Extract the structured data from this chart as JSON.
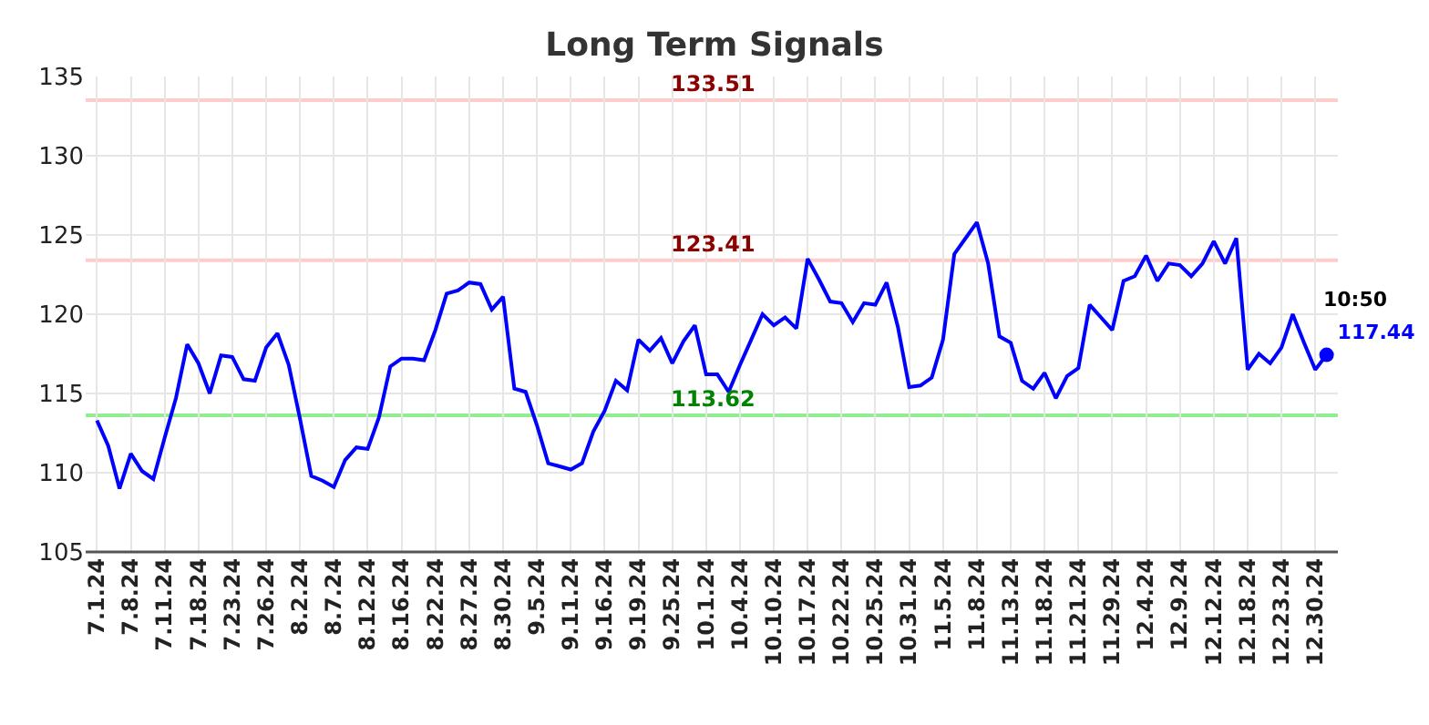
{
  "chart_data": {
    "type": "line",
    "title": "Long Term Signals",
    "categories": [
      "7.1.24",
      null,
      null,
      "7.8.24",
      null,
      null,
      "7.11.24",
      null,
      null,
      "7.18.24",
      null,
      null,
      "7.23.24",
      null,
      null,
      "7.26.24",
      null,
      null,
      "8.2.24",
      null,
      null,
      "8.7.24",
      null,
      null,
      "8.12.24",
      null,
      null,
      "8.16.24",
      null,
      null,
      "8.22.24",
      null,
      null,
      "8.27.24",
      null,
      null,
      "8.30.24",
      null,
      null,
      "9.5.24",
      null,
      null,
      "9.11.24",
      null,
      null,
      "9.16.24",
      null,
      null,
      "9.19.24",
      null,
      null,
      "9.25.24",
      null,
      null,
      "10.1.24",
      null,
      null,
      "10.4.24",
      null,
      null,
      "10.10.24",
      null,
      null,
      "10.17.24",
      null,
      null,
      "10.22.24",
      null,
      null,
      "10.25.24",
      null,
      null,
      "10.31.24",
      null,
      null,
      "11.5.24",
      null,
      null,
      "11.8.24",
      null,
      null,
      "11.13.24",
      null,
      null,
      "11.18.24",
      null,
      null,
      "11.21.24",
      null,
      null,
      "11.29.24",
      null,
      null,
      "12.4.24",
      null,
      null,
      "12.9.24",
      null,
      null,
      "12.12.24",
      null,
      null,
      "12.18.24",
      null,
      null,
      "12.23.24",
      null,
      null,
      "12.30.24",
      null
    ],
    "series": [
      {
        "color": "#0000ff",
        "values": [
          113.3,
          111.7,
          109.0,
          111.2,
          110.1,
          109.6,
          112.2,
          114.7,
          118.1,
          116.9,
          115.0,
          117.4,
          117.3,
          115.9,
          115.8,
          117.9,
          118.8,
          116.8,
          113.4,
          109.8,
          109.5,
          109.1,
          110.8,
          111.6,
          111.5,
          113.5,
          116.7,
          117.2,
          117.2,
          117.1,
          119.0,
          121.3,
          121.5,
          122.0,
          121.9,
          120.3,
          121.1,
          115.3,
          115.1,
          113.0,
          110.6,
          110.4,
          110.2,
          110.6,
          112.6,
          113.9,
          115.8,
          115.2,
          118.4,
          117.7,
          118.5,
          116.9,
          118.3,
          119.3,
          116.2,
          116.2,
          115.1,
          116.8,
          118.4,
          120.0,
          119.3,
          119.8,
          119.1,
          123.5,
          122.2,
          120.8,
          120.7,
          119.5,
          120.7,
          120.6,
          122.0,
          119.2,
          115.4,
          115.5,
          116.0,
          118.4,
          123.8,
          124.8,
          125.8,
          123.2,
          118.6,
          118.2,
          115.8,
          115.3,
          116.3,
          114.7,
          116.1,
          116.6,
          120.6,
          119.8,
          119.0,
          122.1,
          122.4,
          123.7,
          122.1,
          123.2,
          123.1,
          122.4,
          123.2,
          124.6,
          123.2,
          124.8,
          116.5,
          117.5,
          116.9,
          117.9,
          120.0,
          118.2,
          116.5,
          117.44
        ]
      },
      {
        "type": "scatter",
        "color": "#0000ff",
        "marker": "circle",
        "values": [
          null,
          null,
          null,
          null,
          null,
          null,
          null,
          null,
          null,
          null,
          null,
          null,
          null,
          null,
          null,
          null,
          null,
          null,
          null,
          null,
          null,
          null,
          null,
          null,
          null,
          null,
          null,
          null,
          null,
          null,
          null,
          null,
          null,
          null,
          null,
          null,
          null,
          null,
          null,
          null,
          null,
          null,
          null,
          null,
          null,
          null,
          null,
          null,
          null,
          null,
          null,
          null,
          null,
          null,
          null,
          null,
          null,
          null,
          null,
          null,
          null,
          null,
          null,
          null,
          null,
          null,
          null,
          null,
          null,
          null,
          null,
          null,
          null,
          null,
          null,
          null,
          null,
          null,
          null,
          null,
          null,
          null,
          null,
          null,
          null,
          null,
          null,
          null,
          null,
          null,
          null,
          null,
          null,
          null,
          null,
          null,
          null,
          null,
          null,
          null,
          null,
          null,
          null,
          null,
          null,
          null,
          null,
          null,
          null,
          117.44
        ],
        "data_labels": true
      }
    ],
    "ylim": [
      105,
      135
    ],
    "yticks": [
      105,
      110,
      115,
      120,
      125,
      130,
      135
    ],
    "grid": true,
    "ref_lines": [
      {
        "axis": "y",
        "value": 133.51,
        "label": "133.51",
        "color": "#ffcccc"
      },
      {
        "axis": "y",
        "value": 123.41,
        "label": "123.41",
        "color": "#ffcccc"
      },
      {
        "axis": "y",
        "value": 113.62,
        "label": "113.62",
        "color": "#90ee90"
      }
    ],
    "annotations": [
      "10:50"
    ]
  }
}
